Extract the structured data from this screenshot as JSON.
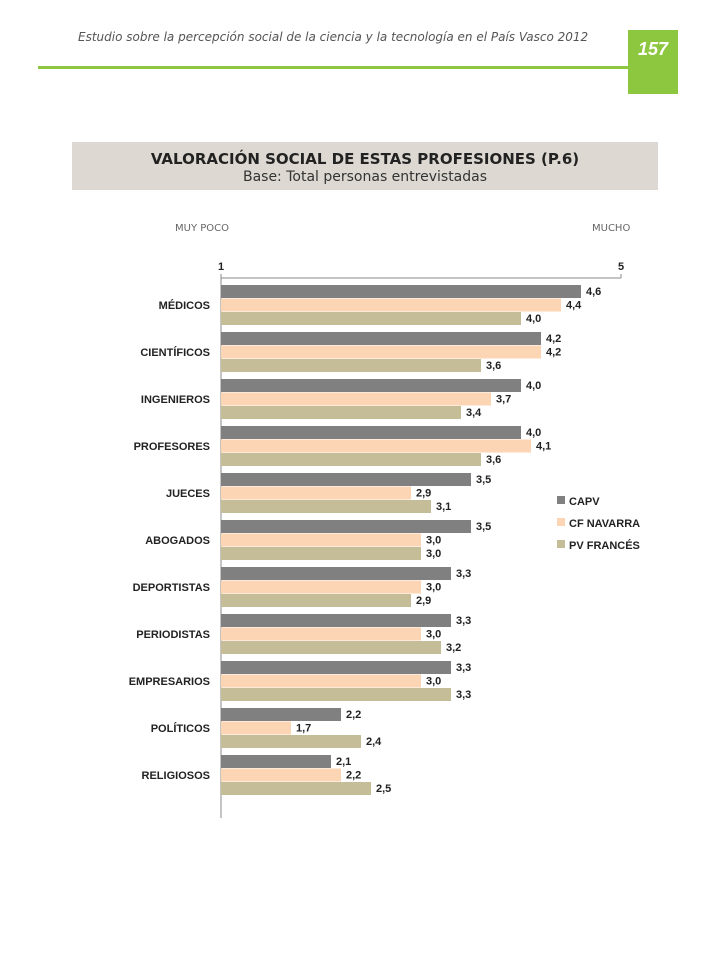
{
  "header": {
    "running_title": "Estudio sobre la percepción social de la ciencia y la tecnología en el País Vasco 2012",
    "page_number": "157"
  },
  "panel": {
    "title": "VALORACIÓN SOCIAL DE ESTAS PROFESIONES (P.6)",
    "subtitle": "Base: Total personas entrevistadas",
    "left_end_label": "MUY POCO",
    "right_end_label": "MUCHO"
  },
  "colors": {
    "accent_green": "#8dc63f",
    "title_band": "#ddd9d2",
    "capv": "#808080",
    "cf_navarra": "#fcd5b4",
    "pv_frances": "#c4bd97"
  },
  "chart_data": {
    "type": "bar",
    "orientation": "horizontal",
    "xlim": [
      1,
      5
    ],
    "tick_labels": [
      "1",
      "5"
    ],
    "categories": [
      "MÉDICOS",
      "CIENTÍFICOS",
      "INGENIEROS",
      "PROFESORES",
      "JUECES",
      "ABOGADOS",
      "DEPORTISTAS",
      "PERIODISTAS",
      "EMPRESARIOS",
      "POLÍTICOS",
      "RELIGIOSOS"
    ],
    "series": [
      {
        "name": "CAPV",
        "color": "#808080",
        "values": [
          4.6,
          4.2,
          4.0,
          4.0,
          3.5,
          3.5,
          3.3,
          3.3,
          3.3,
          2.2,
          2.1
        ],
        "labels": [
          "4,6",
          "4,2",
          "4,0",
          "4,0",
          "3,5",
          "3,5",
          "3,3",
          "3,3",
          "3,3",
          "2,2",
          "2,1"
        ]
      },
      {
        "name": "CF NAVARRA",
        "color": "#fcd5b4",
        "values": [
          4.4,
          4.2,
          3.7,
          4.1,
          2.9,
          3.0,
          3.0,
          3.0,
          3.0,
          1.7,
          2.2
        ],
        "labels": [
          "4,4",
          "4,2",
          "3,7",
          "4,1",
          "2,9",
          "3,0",
          "3,0",
          "3,0",
          "3,0",
          "1,7",
          "2,2"
        ]
      },
      {
        "name": "PV FRANCÉS",
        "color": "#c4bd97",
        "values": [
          4.0,
          3.6,
          3.4,
          3.6,
          3.1,
          3.0,
          2.9,
          3.2,
          3.3,
          2.4,
          2.5
        ],
        "labels": [
          "4,0",
          "3,6",
          "3,4",
          "3,6",
          "3,1",
          "3,0",
          "2,9",
          "3,2",
          "3,3",
          "2,4",
          "2,5"
        ]
      }
    ],
    "legend_position": "right",
    "grid": false
  }
}
